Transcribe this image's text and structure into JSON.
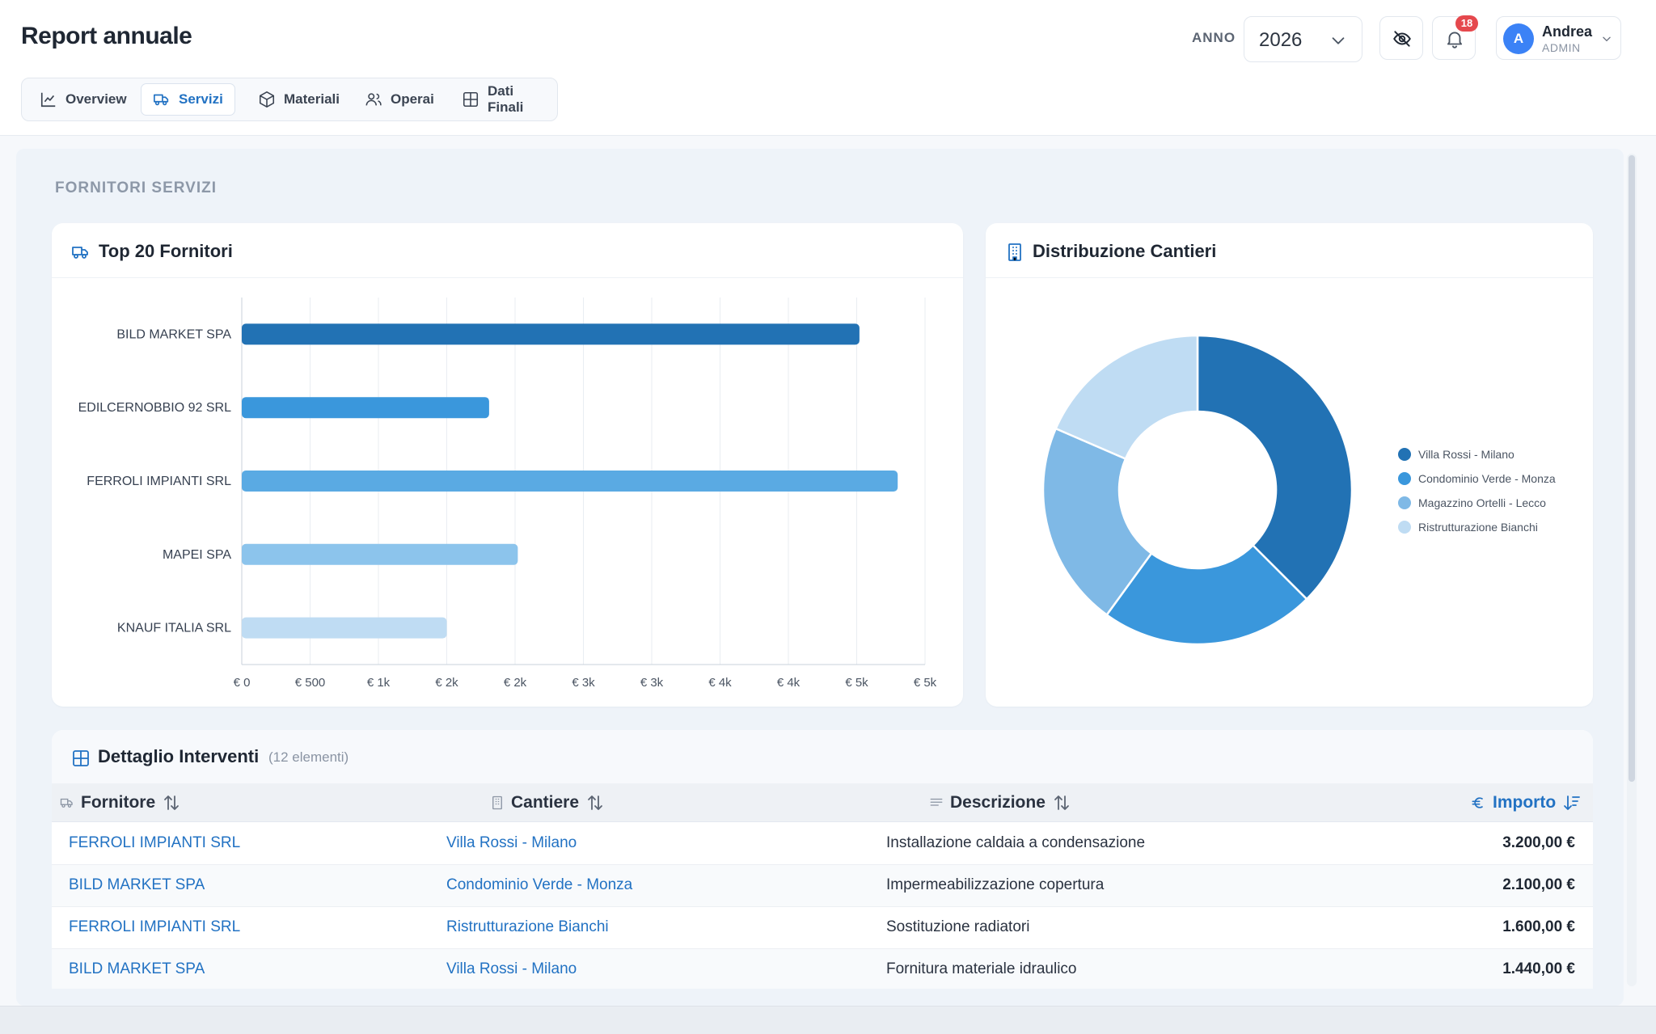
{
  "header": {
    "title": "Report annuale",
    "year_label": "ANNO",
    "year_value": "2026",
    "notifications_count": "18",
    "user": {
      "initial": "A",
      "name": "Andrea",
      "role": "ADMIN"
    }
  },
  "tabs": [
    {
      "label": "Overview",
      "icon": "trend-chart-icon",
      "active": false
    },
    {
      "label": "Servizi",
      "icon": "truck-icon",
      "active": true
    },
    {
      "label": "Materiali",
      "icon": "box-icon",
      "active": false
    },
    {
      "label": "Operai",
      "icon": "users-icon",
      "active": false
    },
    {
      "label": "Dati Finali",
      "icon": "table-icon",
      "active": false
    }
  ],
  "section_title": "FORNITORI SERVIZI",
  "bar_card": {
    "title": "Top 20 Fornitori"
  },
  "pie_card": {
    "title": "Distribuzione Cantieri"
  },
  "chart_data": [
    {
      "type": "bar",
      "orientation": "horizontal",
      "title": "Top 20 Fornitori",
      "categories": [
        "BILD MARKET SPA",
        "EDILCERNOBBIO 92 SRL",
        "FERROLI IMPIANTI SRL",
        "MAPEI SPA",
        "KNAUF ITALIA SRL"
      ],
      "values": [
        4520,
        1810,
        4800,
        2020,
        1500
      ],
      "colors": [
        "#2272b4",
        "#3a97dc",
        "#5aaae3",
        "#8cc4ec",
        "#bfdcf3"
      ],
      "xlim": [
        0,
        5000
      ],
      "x_ticks": [
        "€ 0",
        "€ 500",
        "€ 1k",
        "€ 2k",
        "€ 2k",
        "€ 3k",
        "€ 3k",
        "€ 4k",
        "€ 4k",
        "€ 5k",
        "€ 5k"
      ],
      "grid": true
    },
    {
      "type": "pie",
      "donut": true,
      "title": "Distribuzione Cantieri",
      "categories": [
        "Villa Rossi - Milano",
        "Condominio Verde - Monza",
        "Magazzino Ortelli - Lecco",
        "Ristrutturazione Bianchi"
      ],
      "values": [
        37.5,
        22.5,
        21.5,
        18.5
      ],
      "colors": [
        "#2272b4",
        "#3a97dc",
        "#7fb9e6",
        "#bfdcf3"
      ],
      "legend_position": "right"
    }
  ],
  "table": {
    "title": "Dettaglio Interventi",
    "count_label": "(12 elementi)",
    "columns": {
      "supplier": "Fornitore",
      "site": "Cantiere",
      "description": "Descrizione",
      "amount": "Importo"
    },
    "rows": [
      {
        "supplier": "FERROLI IMPIANTI SRL",
        "site": "Villa Rossi - Milano",
        "description": "Installazione caldaia a condensazione",
        "amount": "3.200,00 €"
      },
      {
        "supplier": "BILD MARKET SPA",
        "site": "Condominio Verde - Monza",
        "description": "Impermeabilizzazione copertura",
        "amount": "2.100,00 €"
      },
      {
        "supplier": "FERROLI IMPIANTI SRL",
        "site": "Ristrutturazione Bianchi",
        "description": "Sostituzione radiatori",
        "amount": "1.600,00 €"
      },
      {
        "supplier": "BILD MARKET SPA",
        "site": "Villa Rossi - Milano",
        "description": "Fornitura materiale idraulico",
        "amount": "1.440,00 €"
      }
    ]
  }
}
